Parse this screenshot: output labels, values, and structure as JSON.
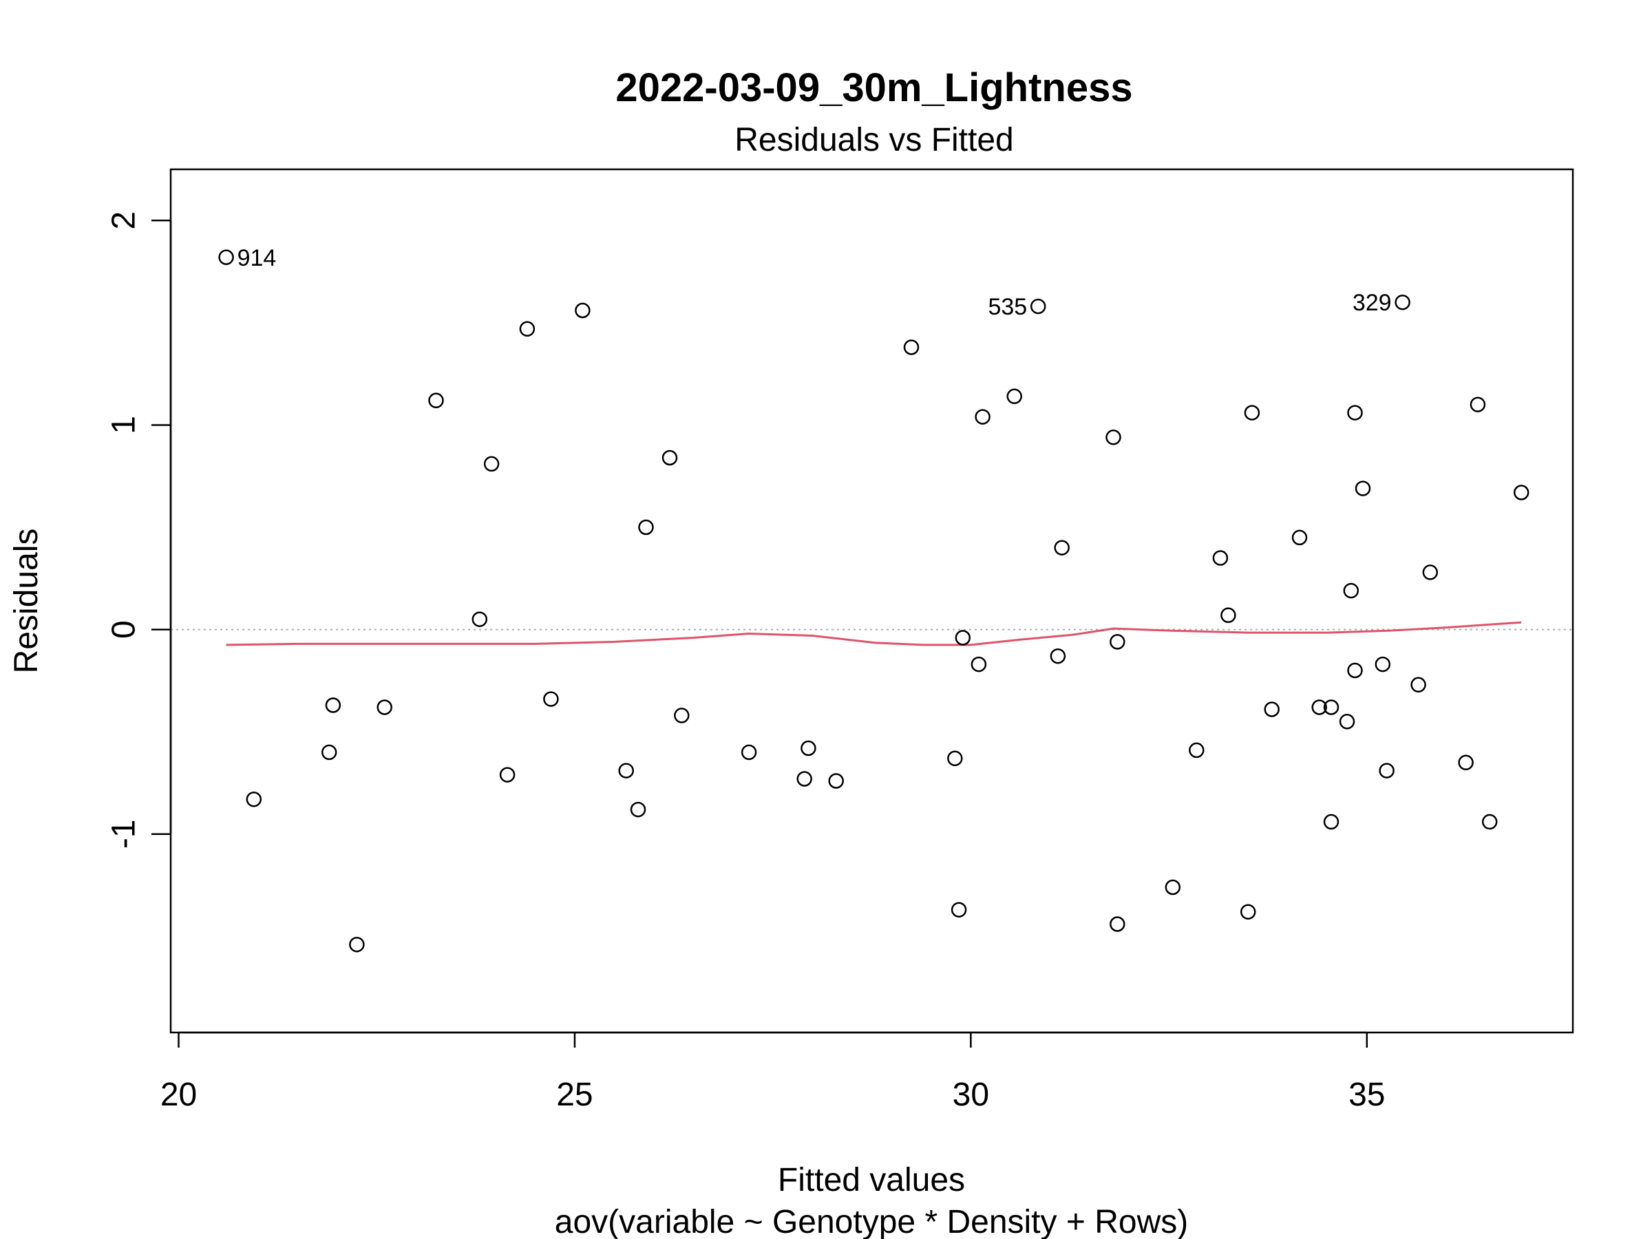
{
  "chart_data": {
    "type": "scatter",
    "title": "2022-03-09_30m_Lightness",
    "subtitle": "Residuals vs Fitted",
    "xlabel": "Fitted values",
    "xlabel2": "aov(variable ~ Genotype * Density + Rows)",
    "ylabel": "Residuals",
    "xlim": [
      19.9,
      37.6
    ],
    "ylim": [
      -1.97,
      2.25
    ],
    "xticks": [
      "20",
      "25",
      "30",
      "35"
    ],
    "xtick_values": [
      20,
      25,
      30,
      35
    ],
    "yticks": [
      "-1",
      "0",
      "1",
      "2"
    ],
    "ytick_values": [
      -1,
      0,
      1,
      2
    ],
    "grid": false,
    "reference_line": {
      "y": 0,
      "color": "#aaaaaa",
      "style": "dotted"
    },
    "smoother_color": "#df536b",
    "point_color": "#000000",
    "points": [
      {
        "x": 20.6,
        "y": 1.82,
        "label": "914"
      },
      {
        "x": 20.95,
        "y": -0.83
      },
      {
        "x": 21.9,
        "y": -0.6
      },
      {
        "x": 21.95,
        "y": -0.37
      },
      {
        "x": 22.25,
        "y": -1.54
      },
      {
        "x": 22.6,
        "y": -0.38
      },
      {
        "x": 23.25,
        "y": 1.12
      },
      {
        "x": 23.8,
        "y": 0.05
      },
      {
        "x": 23.95,
        "y": 0.81
      },
      {
        "x": 24.15,
        "y": -0.71
      },
      {
        "x": 24.4,
        "y": 1.47
      },
      {
        "x": 24.7,
        "y": -0.34
      },
      {
        "x": 25.1,
        "y": 1.56
      },
      {
        "x": 25.65,
        "y": -0.69
      },
      {
        "x": 25.8,
        "y": -0.88
      },
      {
        "x": 25.9,
        "y": 0.5
      },
      {
        "x": 26.2,
        "y": 0.84
      },
      {
        "x": 26.35,
        "y": -0.42
      },
      {
        "x": 27.2,
        "y": -0.6
      },
      {
        "x": 27.9,
        "y": -0.73
      },
      {
        "x": 27.95,
        "y": -0.58
      },
      {
        "x": 28.3,
        "y": -0.74
      },
      {
        "x": 29.25,
        "y": 1.38
      },
      {
        "x": 29.8,
        "y": -0.63
      },
      {
        "x": 29.85,
        "y": -1.37
      },
      {
        "x": 29.9,
        "y": -0.04
      },
      {
        "x": 30.1,
        "y": -0.17
      },
      {
        "x": 30.15,
        "y": 1.04
      },
      {
        "x": 30.55,
        "y": 1.14
      },
      {
        "x": 30.85,
        "y": 1.58,
        "label": "535"
      },
      {
        "x": 31.1,
        "y": -0.13
      },
      {
        "x": 31.15,
        "y": 0.4
      },
      {
        "x": 31.8,
        "y": 0.94
      },
      {
        "x": 31.85,
        "y": -1.44
      },
      {
        "x": 31.85,
        "y": -0.06
      },
      {
        "x": 32.55,
        "y": -1.26
      },
      {
        "x": 32.85,
        "y": -0.59
      },
      {
        "x": 33.15,
        "y": 0.35
      },
      {
        "x": 33.25,
        "y": 0.07
      },
      {
        "x": 33.5,
        "y": -1.38
      },
      {
        "x": 33.55,
        "y": 1.06
      },
      {
        "x": 33.8,
        "y": -0.39
      },
      {
        "x": 34.15,
        "y": 0.45
      },
      {
        "x": 34.4,
        "y": -0.38
      },
      {
        "x": 34.55,
        "y": -0.38
      },
      {
        "x": 34.55,
        "y": -0.94
      },
      {
        "x": 34.75,
        "y": -0.45
      },
      {
        "x": 34.8,
        "y": 0.19
      },
      {
        "x": 34.85,
        "y": 1.06
      },
      {
        "x": 34.85,
        "y": -0.2
      },
      {
        "x": 34.95,
        "y": 0.69
      },
      {
        "x": 35.2,
        "y": -0.17
      },
      {
        "x": 35.25,
        "y": -0.69
      },
      {
        "x": 35.45,
        "y": 1.6,
        "label": "329"
      },
      {
        "x": 35.65,
        "y": -0.27
      },
      {
        "x": 35.8,
        "y": 0.28
      },
      {
        "x": 36.25,
        "y": -0.65
      },
      {
        "x": 36.4,
        "y": 1.1
      },
      {
        "x": 36.55,
        "y": -0.94
      },
      {
        "x": 36.95,
        "y": 0.67
      }
    ],
    "smoother": [
      {
        "x": 20.6,
        "y": -0.075
      },
      {
        "x": 21.5,
        "y": -0.07
      },
      {
        "x": 22.5,
        "y": -0.07
      },
      {
        "x": 23.5,
        "y": -0.07
      },
      {
        "x": 24.5,
        "y": -0.07
      },
      {
        "x": 25.5,
        "y": -0.06
      },
      {
        "x": 26.5,
        "y": -0.04
      },
      {
        "x": 27.2,
        "y": -0.02
      },
      {
        "x": 28.0,
        "y": -0.03
      },
      {
        "x": 28.8,
        "y": -0.065
      },
      {
        "x": 29.4,
        "y": -0.075
      },
      {
        "x": 30.0,
        "y": -0.075
      },
      {
        "x": 30.6,
        "y": -0.05
      },
      {
        "x": 31.3,
        "y": -0.025
      },
      {
        "x": 31.8,
        "y": 0.005
      },
      {
        "x": 32.5,
        "y": -0.005
      },
      {
        "x": 33.5,
        "y": -0.015
      },
      {
        "x": 34.5,
        "y": -0.015
      },
      {
        "x": 35.3,
        "y": -0.005
      },
      {
        "x": 36.0,
        "y": 0.01
      },
      {
        "x": 36.95,
        "y": 0.035
      }
    ]
  }
}
